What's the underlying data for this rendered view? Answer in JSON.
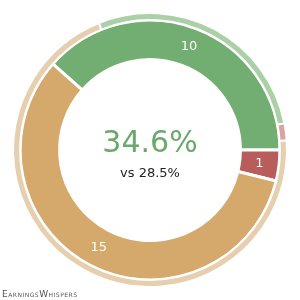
{
  "chart_data": {
    "type": "doughnut",
    "annotations": [
      "34.6%",
      "vs 28.5%"
    ],
    "credit": "EarningsWhispers",
    "series": [
      {
        "values": [
          28,
          2,
          70
        ],
        "colors": [
          "#abd0a7",
          "#d9a3a3",
          "#e6cfae"
        ],
        "data_labels": false
      },
      {
        "values": [
          10,
          1,
          15
        ],
        "colors": [
          "#72ad72",
          "#b85c5c",
          "#d5a86c"
        ],
        "data_labels": true
      }
    ]
  }
}
